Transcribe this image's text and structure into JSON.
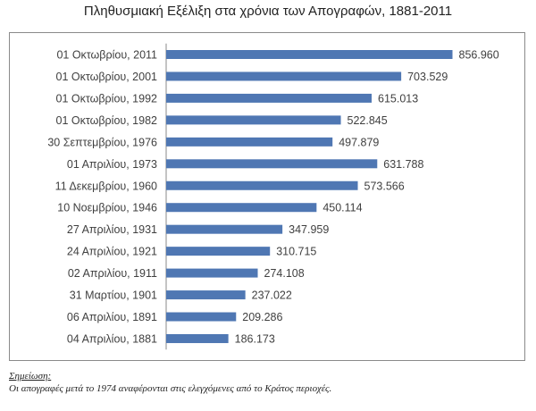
{
  "chart_data": {
    "type": "bar",
    "orientation": "horizontal",
    "title": "Πληθυσμιακή Εξέλιξη στα χρόνια των Απογραφών, 1881-2011",
    "xlabel": "",
    "ylabel": "",
    "grid": false,
    "xlim": [
      0,
      900
    ],
    "categories": [
      "01 Οκτωβρίου, 2011",
      "01 Οκτωβρίου, 2001",
      "01 Οκτωβρίου, 1992",
      "01 Οκτωβρίου, 1982",
      "30 Σεπτεμβρίου, 1976",
      "01 Απριλίου, 1973",
      "11 Δεκεμβρίου, 1960",
      "10 Νοεμβρίου, 1946",
      "27 Απριλίου, 1931",
      "24 Απριλίου, 1921",
      "02 Απριλίου, 1911",
      "31 Μαρτίου, 1901",
      "06 Απριλίου, 1891",
      "04 Απριλίου, 1881"
    ],
    "values": [
      856.96,
      703.529,
      615.013,
      522.845,
      497.879,
      631.788,
      573.566,
      450.114,
      347.959,
      310.715,
      274.108,
      237.022,
      209.286,
      186.173
    ],
    "value_labels": [
      "856.960",
      "703.529",
      "615.013",
      "522.845",
      "497.879",
      "631.788",
      "573.566",
      "450.114",
      "347.959",
      "310.715",
      "274.108",
      "237.022",
      "209.286",
      "186.173"
    ],
    "bar_color": "#4f77b3"
  },
  "note": {
    "heading": "Σημείωση:",
    "text": "Οι απογραφές μετά το 1974 αναφέρονται στις ελεγχόμενες από το Κράτος περιοχές."
  }
}
